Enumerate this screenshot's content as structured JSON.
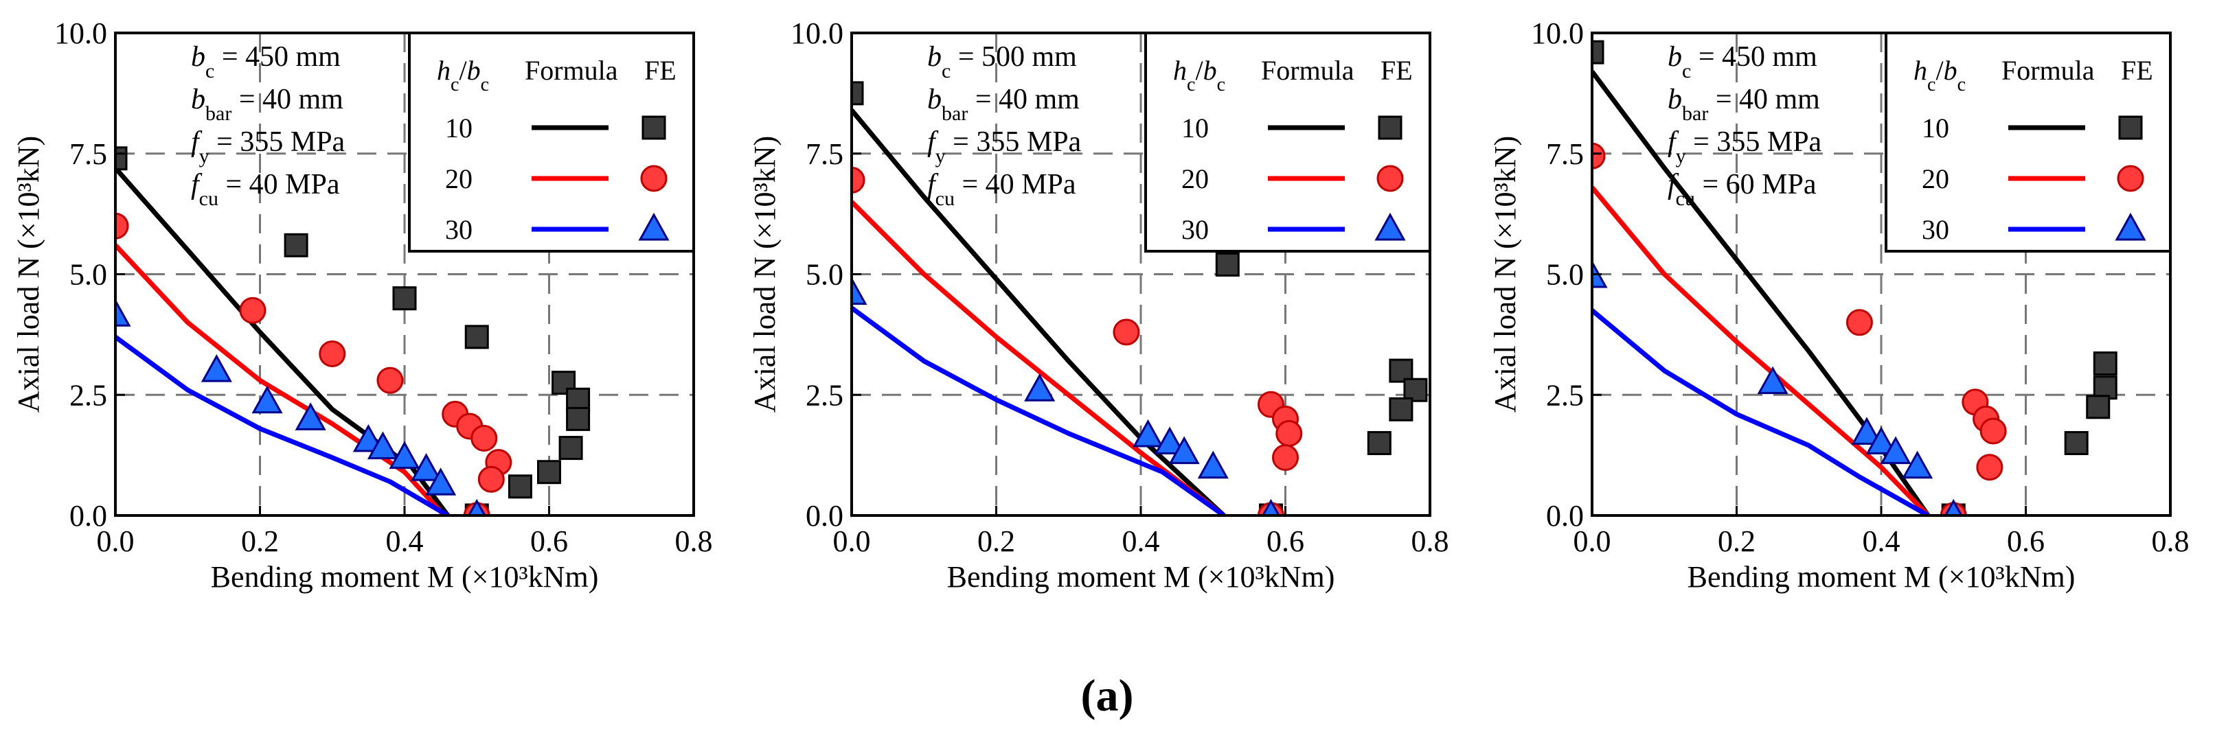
{
  "figure_label": "(a)",
  "legend": {
    "header_ratio": "h_c/b_c",
    "header_formula": "Formula",
    "header_fe": "FE",
    "entries": [
      {
        "ratio": "10",
        "color": "#000000",
        "marker": "square",
        "marker_fill": "#3a3a3a"
      },
      {
        "ratio": "20",
        "color": "#ff0000",
        "marker": "circle",
        "marker_fill": "#ff3b3b"
      },
      {
        "ratio": "30",
        "color": "#0000ff",
        "marker": "triangle",
        "marker_fill": "#1e6bff"
      }
    ]
  },
  "chart_data": [
    {
      "type": "scatter",
      "title": "",
      "xlabel": "Bending moment M (×10³kNm)",
      "ylabel": "Axial load N (×10³kN)",
      "xlim": [
        0,
        0.8
      ],
      "ylim": [
        0,
        10
      ],
      "xticks": [
        "0.0",
        "0.2",
        "0.4",
        "0.6",
        "0.8"
      ],
      "yticks": [
        "0.0",
        "2.5",
        "5.0",
        "7.5",
        "10.0"
      ],
      "grid": true,
      "annotation": [
        {
          "sym": "b",
          "sub": "c",
          "value": " = 450 mm"
        },
        {
          "sym": "b",
          "sub": "bar",
          "value": " = 40 mm"
        },
        {
          "sym": "f",
          "sub": "y",
          "value": " = 355 MPa"
        },
        {
          "sym": "f",
          "sub": "cu",
          "value": " = 40 MPa"
        }
      ],
      "series": [
        {
          "name": "10",
          "line": [
            [
              0,
              7.2
            ],
            [
              0.1,
              5.5
            ],
            [
              0.2,
              3.8
            ],
            [
              0.3,
              2.2
            ],
            [
              0.41,
              1.0
            ],
            [
              0.46,
              0.0
            ]
          ],
          "points": [
            [
              0.0,
              7.4
            ],
            [
              0.25,
              5.6
            ],
            [
              0.4,
              4.5
            ],
            [
              0.5,
              3.7
            ],
            [
              0.62,
              2.75
            ],
            [
              0.64,
              2.4
            ],
            [
              0.64,
              2.0
            ],
            [
              0.63,
              1.4
            ],
            [
              0.6,
              0.9
            ],
            [
              0.56,
              0.6
            ],
            [
              0.5,
              0.0
            ]
          ]
        },
        {
          "name": "20",
          "line": [
            [
              0,
              5.6
            ],
            [
              0.1,
              4.0
            ],
            [
              0.2,
              2.8
            ],
            [
              0.3,
              1.9
            ],
            [
              0.4,
              0.9
            ],
            [
              0.455,
              0.0
            ]
          ],
          "points": [
            [
              0.0,
              6.0
            ],
            [
              0.19,
              4.25
            ],
            [
              0.3,
              3.35
            ],
            [
              0.38,
              2.8
            ],
            [
              0.47,
              2.1
            ],
            [
              0.49,
              1.85
            ],
            [
              0.51,
              1.6
            ],
            [
              0.53,
              1.1
            ],
            [
              0.52,
              0.75
            ],
            [
              0.5,
              0.0
            ]
          ]
        },
        {
          "name": "30",
          "line": [
            [
              0,
              3.7
            ],
            [
              0.1,
              2.6
            ],
            [
              0.2,
              1.8
            ],
            [
              0.3,
              1.2
            ],
            [
              0.38,
              0.7
            ],
            [
              0.46,
              0.0
            ]
          ],
          "points": [
            [
              0.0,
              4.15
            ],
            [
              0.14,
              3.0
            ],
            [
              0.21,
              2.35
            ],
            [
              0.27,
              2.0
            ],
            [
              0.35,
              1.55
            ],
            [
              0.37,
              1.4
            ],
            [
              0.4,
              1.2
            ],
            [
              0.43,
              0.95
            ],
            [
              0.45,
              0.65
            ],
            [
              0.5,
              0.0
            ]
          ]
        }
      ]
    },
    {
      "type": "scatter",
      "title": "",
      "xlabel": "Bending moment M (×10³kNm)",
      "ylabel": "Axial load N (×10³kN)",
      "xlim": [
        0,
        0.8
      ],
      "ylim": [
        0,
        10
      ],
      "xticks": [
        "0.0",
        "0.2",
        "0.4",
        "0.6",
        "0.8"
      ],
      "yticks": [
        "0.0",
        "2.5",
        "5.0",
        "7.5",
        "10.0"
      ],
      "grid": true,
      "annotation": [
        {
          "sym": "b",
          "sub": "c",
          "value": " = 500 mm"
        },
        {
          "sym": "b",
          "sub": "bar",
          "value": " = 40 mm"
        },
        {
          "sym": "f",
          "sub": "y",
          "value": " = 355 MPa"
        },
        {
          "sym": "f",
          "sub": "cu",
          "value": " = 40 MPa"
        }
      ],
      "series": [
        {
          "name": "10",
          "line": [
            [
              0,
              8.4
            ],
            [
              0.1,
              6.6
            ],
            [
              0.2,
              4.9
            ],
            [
              0.3,
              3.2
            ],
            [
              0.4,
              1.6
            ],
            [
              0.515,
              0.0
            ]
          ],
          "points": [
            [
              0.0,
              8.75
            ],
            [
              0.52,
              5.2
            ],
            [
              0.76,
              3.0
            ],
            [
              0.78,
              2.6
            ],
            [
              0.76,
              2.2
            ],
            [
              0.73,
              1.5
            ],
            [
              0.58,
              0.0
            ]
          ]
        },
        {
          "name": "20",
          "line": [
            [
              0,
              6.5
            ],
            [
              0.1,
              5.0
            ],
            [
              0.2,
              3.7
            ],
            [
              0.3,
              2.5
            ],
            [
              0.4,
              1.3
            ],
            [
              0.515,
              0.0
            ]
          ],
          "points": [
            [
              0.0,
              6.95
            ],
            [
              0.38,
              3.8
            ],
            [
              0.58,
              2.3
            ],
            [
              0.6,
              2.0
            ],
            [
              0.605,
              1.7
            ],
            [
              0.6,
              1.2
            ],
            [
              0.58,
              0.0
            ]
          ]
        },
        {
          "name": "30",
          "line": [
            [
              0,
              4.3
            ],
            [
              0.1,
              3.2
            ],
            [
              0.2,
              2.4
            ],
            [
              0.3,
              1.7
            ],
            [
              0.43,
              0.9
            ],
            [
              0.515,
              0.0
            ]
          ],
          "points": [
            [
              0.0,
              4.6
            ],
            [
              0.26,
              2.6
            ],
            [
              0.41,
              1.65
            ],
            [
              0.44,
              1.5
            ],
            [
              0.46,
              1.3
            ],
            [
              0.5,
              1.0
            ],
            [
              0.58,
              0.0
            ]
          ]
        }
      ]
    },
    {
      "type": "scatter",
      "title": "",
      "xlabel": "Bending moment M (×10³kNm)",
      "ylabel": "Axial load N (×10³kN)",
      "xlim": [
        0,
        0.8
      ],
      "ylim": [
        0,
        10
      ],
      "xticks": [
        "0.0",
        "0.2",
        "0.4",
        "0.6",
        "0.8"
      ],
      "yticks": [
        "0.0",
        "2.5",
        "5.0",
        "7.5",
        "10.0"
      ],
      "grid": true,
      "annotation": [
        {
          "sym": "b",
          "sub": "c",
          "value": " = 450 mm"
        },
        {
          "sym": "b",
          "sub": "bar",
          "value": " = 40 mm"
        },
        {
          "sym": "f",
          "sub": "y",
          "value": " = 355 MPa"
        },
        {
          "sym": "f",
          "sub": "cu",
          "value": " = 60 MPa"
        }
      ],
      "series": [
        {
          "name": "10",
          "line": [
            [
              0,
              9.2
            ],
            [
              0.1,
              7.2
            ],
            [
              0.2,
              5.3
            ],
            [
              0.3,
              3.4
            ],
            [
              0.4,
              1.4
            ],
            [
              0.465,
              0.0
            ]
          ],
          "points": [
            [
              0.0,
              9.6
            ],
            [
              0.71,
              3.15
            ],
            [
              0.71,
              2.65
            ],
            [
              0.7,
              2.25
            ],
            [
              0.67,
              1.5
            ],
            [
              0.5,
              0.0
            ]
          ]
        },
        {
          "name": "20",
          "line": [
            [
              0,
              6.8
            ],
            [
              0.1,
              5.0
            ],
            [
              0.2,
              3.6
            ],
            [
              0.3,
              2.3
            ],
            [
              0.4,
              1.0
            ],
            [
              0.465,
              0.0
            ]
          ],
          "points": [
            [
              0.0,
              7.45
            ],
            [
              0.37,
              4.0
            ],
            [
              0.53,
              2.35
            ],
            [
              0.545,
              2.0
            ],
            [
              0.555,
              1.75
            ],
            [
              0.55,
              1.0
            ],
            [
              0.5,
              0.0
            ]
          ]
        },
        {
          "name": "30",
          "line": [
            [
              0,
              4.25
            ],
            [
              0.1,
              3.0
            ],
            [
              0.2,
              2.1
            ],
            [
              0.3,
              1.45
            ],
            [
              0.37,
              0.8
            ],
            [
              0.465,
              0.0
            ]
          ],
          "points": [
            [
              0.0,
              4.95
            ],
            [
              0.25,
              2.75
            ],
            [
              0.38,
              1.7
            ],
            [
              0.4,
              1.5
            ],
            [
              0.42,
              1.3
            ],
            [
              0.45,
              1.0
            ],
            [
              0.5,
              0.0
            ]
          ]
        }
      ]
    }
  ]
}
